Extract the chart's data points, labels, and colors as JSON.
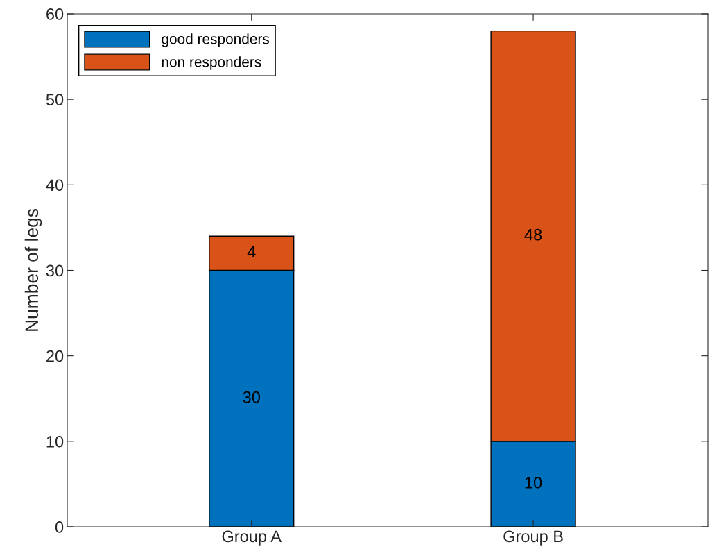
{
  "chart_data": {
    "type": "bar",
    "ylabel": "Number of legs",
    "categories": [
      "Group A",
      "Group B"
    ],
    "series": [
      {
        "name": "good responders",
        "color": "#0072bd",
        "values": [
          30,
          10
        ]
      },
      {
        "name": "non responders",
        "color": "#d95319",
        "values": [
          4,
          48
        ]
      }
    ],
    "stacked": true,
    "ylim": [
      0,
      60
    ],
    "yticks": [
      0,
      10,
      20,
      30,
      40,
      50,
      60
    ],
    "data_labels": true,
    "legend": "top left",
    "grid": false
  }
}
